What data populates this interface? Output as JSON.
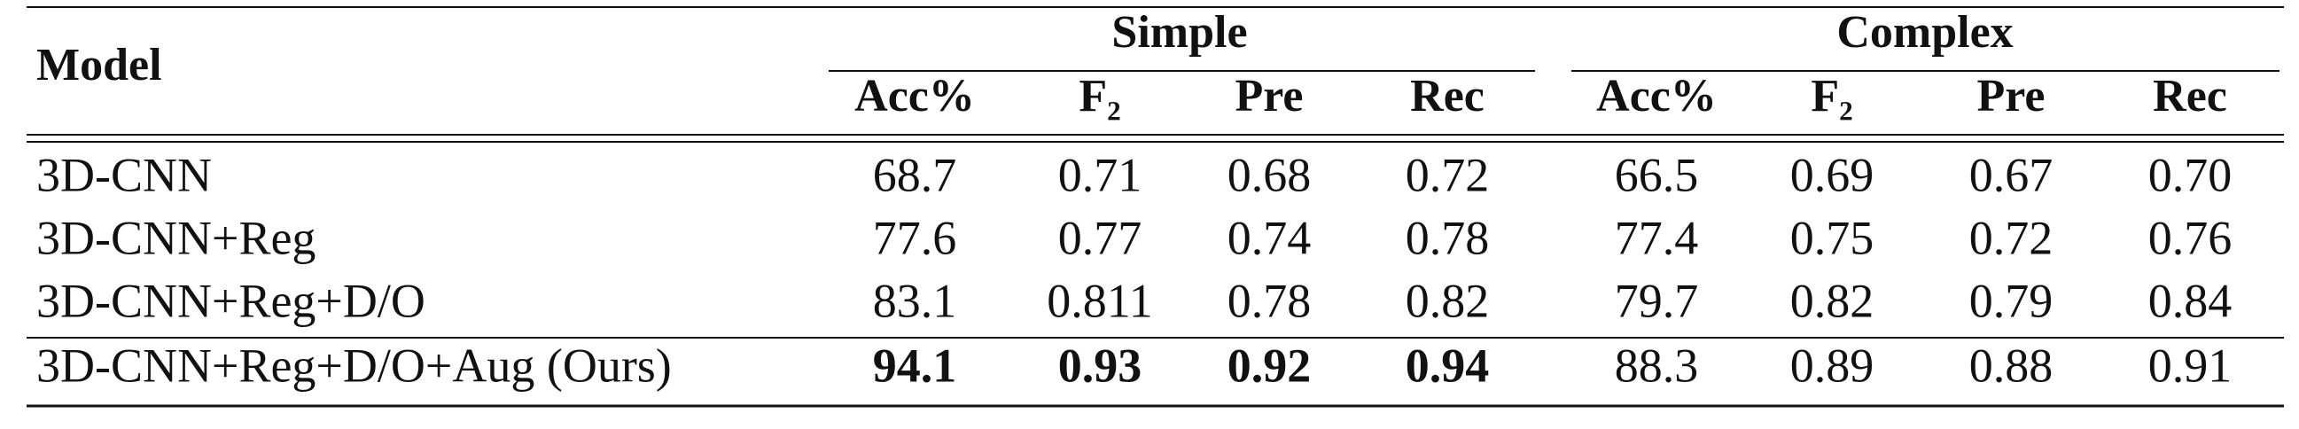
{
  "table": {
    "header": {
      "model": "Model",
      "groups": [
        {
          "name": "Simple",
          "columns": [
            "Acc%",
            "F₂",
            "Pre",
            "Rec"
          ]
        },
        {
          "name": "Complex",
          "columns": [
            "Acc%",
            "F₂",
            "Pre",
            "Rec"
          ]
        }
      ]
    },
    "rows": [
      {
        "model": "3D-CNN",
        "cells": [
          "68.7",
          "0.71",
          "0.68",
          "0.72",
          "66.5",
          "0.69",
          "0.67",
          "0.70"
        ],
        "bold_cells": []
      },
      {
        "model": "3D-CNN+Reg",
        "cells": [
          "77.6",
          "0.77",
          "0.74",
          "0.78",
          "77.4",
          "0.75",
          "0.72",
          "0.76"
        ],
        "bold_cells": []
      },
      {
        "model": "3D-CNN+Reg+D/O",
        "cells": [
          "83.1",
          "0.811",
          "0.78",
          "0.82",
          "79.7",
          "0.82",
          "0.79",
          "0.84"
        ],
        "bold_cells": []
      },
      {
        "model": "3D-CNN+Reg+D/O+Aug (Ours)",
        "cells": [
          "94.1",
          "0.93",
          "0.92",
          "0.94",
          "88.3",
          "0.89",
          "0.88",
          "0.91"
        ],
        "bold_cells": [
          0,
          1,
          2,
          3
        ]
      }
    ]
  }
}
